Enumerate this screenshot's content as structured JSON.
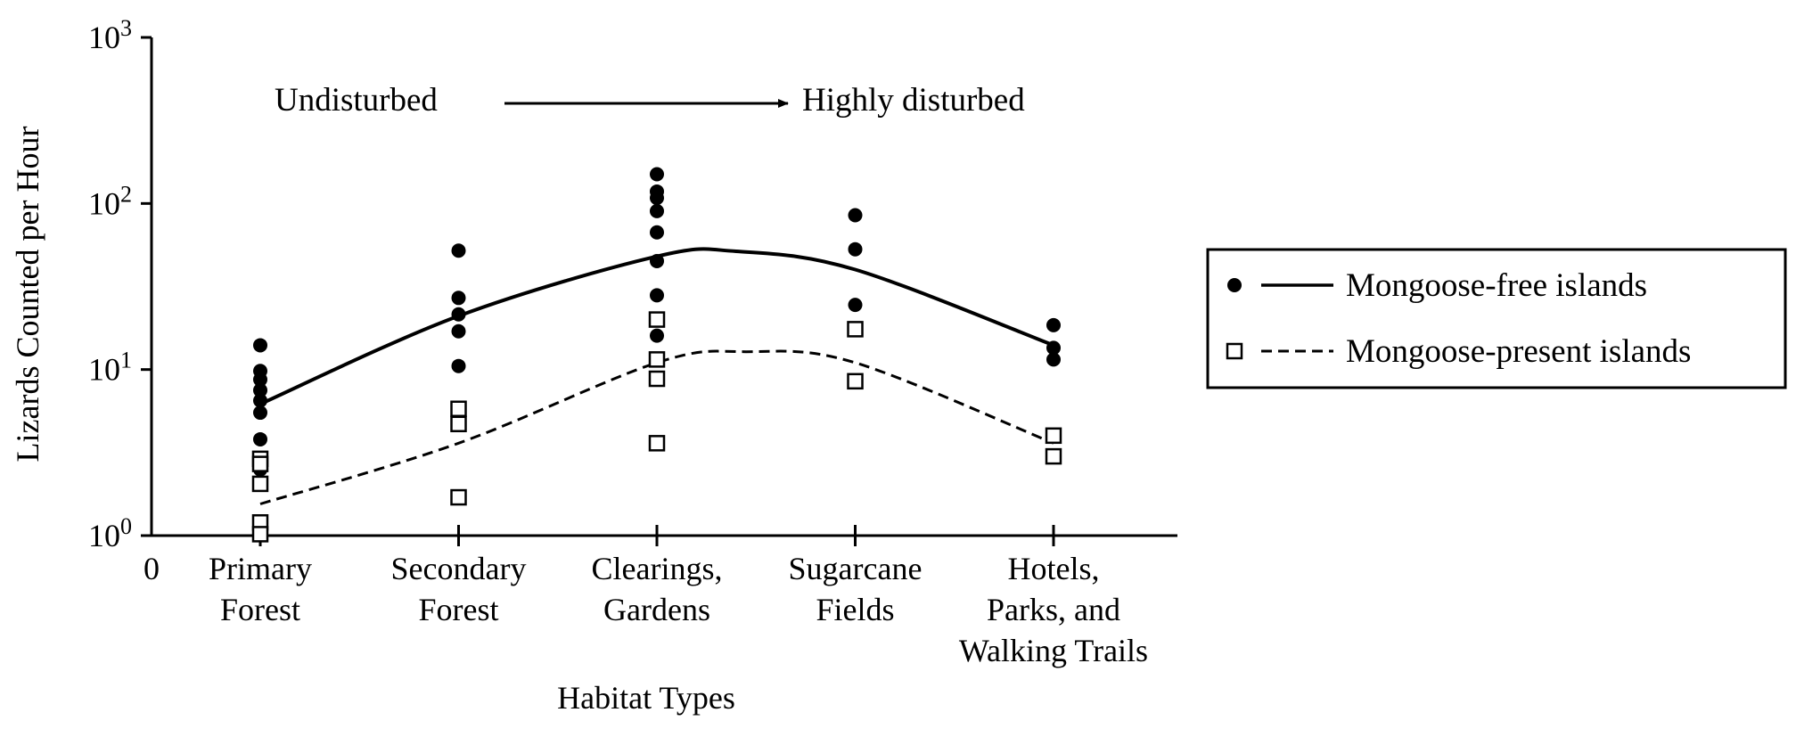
{
  "chart_data": {
    "type": "scatter",
    "title": "",
    "xlabel": "Habitat Types",
    "ylabel": "Lizards Counted per Hour",
    "yscale": "log",
    "ylim": [
      1,
      1000
    ],
    "y_ticks": [
      {
        "value": 1,
        "base": "10",
        "exp": "0"
      },
      {
        "value": 10,
        "base": "10",
        "exp": "1"
      },
      {
        "value": 100,
        "base": "10",
        "exp": "2"
      },
      {
        "value": 1000,
        "base": "10",
        "exp": "3"
      }
    ],
    "x_origin_label": "0",
    "categories": [
      [
        "Primary",
        "Forest"
      ],
      [
        "Secondary",
        "Forest"
      ],
      [
        "Clearings,",
        "Gardens"
      ],
      [
        "Sugarcane",
        "Fields"
      ],
      [
        "Hotels,",
        "Parks, and",
        "Walking Trails"
      ]
    ],
    "annotation": {
      "left": "Undisturbed",
      "right": "Highly disturbed"
    },
    "legend_position": "right",
    "series": [
      {
        "name": "Mongoose-free islands",
        "marker": "filled-circle",
        "line": "solid",
        "points": [
          [
            0,
            14
          ],
          [
            0,
            9.8
          ],
          [
            0,
            8.7
          ],
          [
            0,
            7.5
          ],
          [
            0,
            6.5
          ],
          [
            0,
            5.5
          ],
          [
            0,
            3.8
          ],
          [
            0,
            2.5
          ],
          [
            1,
            52
          ],
          [
            1,
            27
          ],
          [
            1,
            21.5
          ],
          [
            1,
            17
          ],
          [
            1,
            10.5
          ],
          [
            2,
            150
          ],
          [
            2,
            118
          ],
          [
            2,
            108
          ],
          [
            2,
            90
          ],
          [
            2,
            67
          ],
          [
            2,
            45
          ],
          [
            2,
            28
          ],
          [
            2,
            16
          ],
          [
            3,
            85
          ],
          [
            3,
            53
          ],
          [
            3,
            24.5
          ],
          [
            4,
            18.5
          ],
          [
            4,
            13.5
          ],
          [
            4,
            11.5
          ]
        ],
        "curve": [
          [
            0,
            6.2
          ],
          [
            1,
            21
          ],
          [
            2,
            48
          ],
          [
            2.4,
            51.5
          ],
          [
            3,
            40
          ],
          [
            4,
            14
          ]
        ]
      },
      {
        "name": "Mongoose-present islands",
        "marker": "open-square",
        "line": "dashed",
        "points": [
          [
            0,
            2.9
          ],
          [
            0,
            2.7
          ],
          [
            0,
            2.05
          ],
          [
            0,
            1.2
          ],
          [
            0,
            1.02
          ],
          [
            1,
            5.8
          ],
          [
            1,
            4.7
          ],
          [
            1,
            1.7
          ],
          [
            2,
            20
          ],
          [
            2,
            11.5
          ],
          [
            2,
            8.8
          ],
          [
            2,
            3.6
          ],
          [
            3,
            17.5
          ],
          [
            3,
            8.5
          ],
          [
            4,
            4
          ],
          [
            4,
            3
          ]
        ],
        "curve": [
          [
            0,
            1.55
          ],
          [
            1,
            3.6
          ],
          [
            2,
            11
          ],
          [
            2.45,
            12.8
          ],
          [
            3,
            11
          ],
          [
            4,
            3.6
          ]
        ]
      }
    ]
  }
}
